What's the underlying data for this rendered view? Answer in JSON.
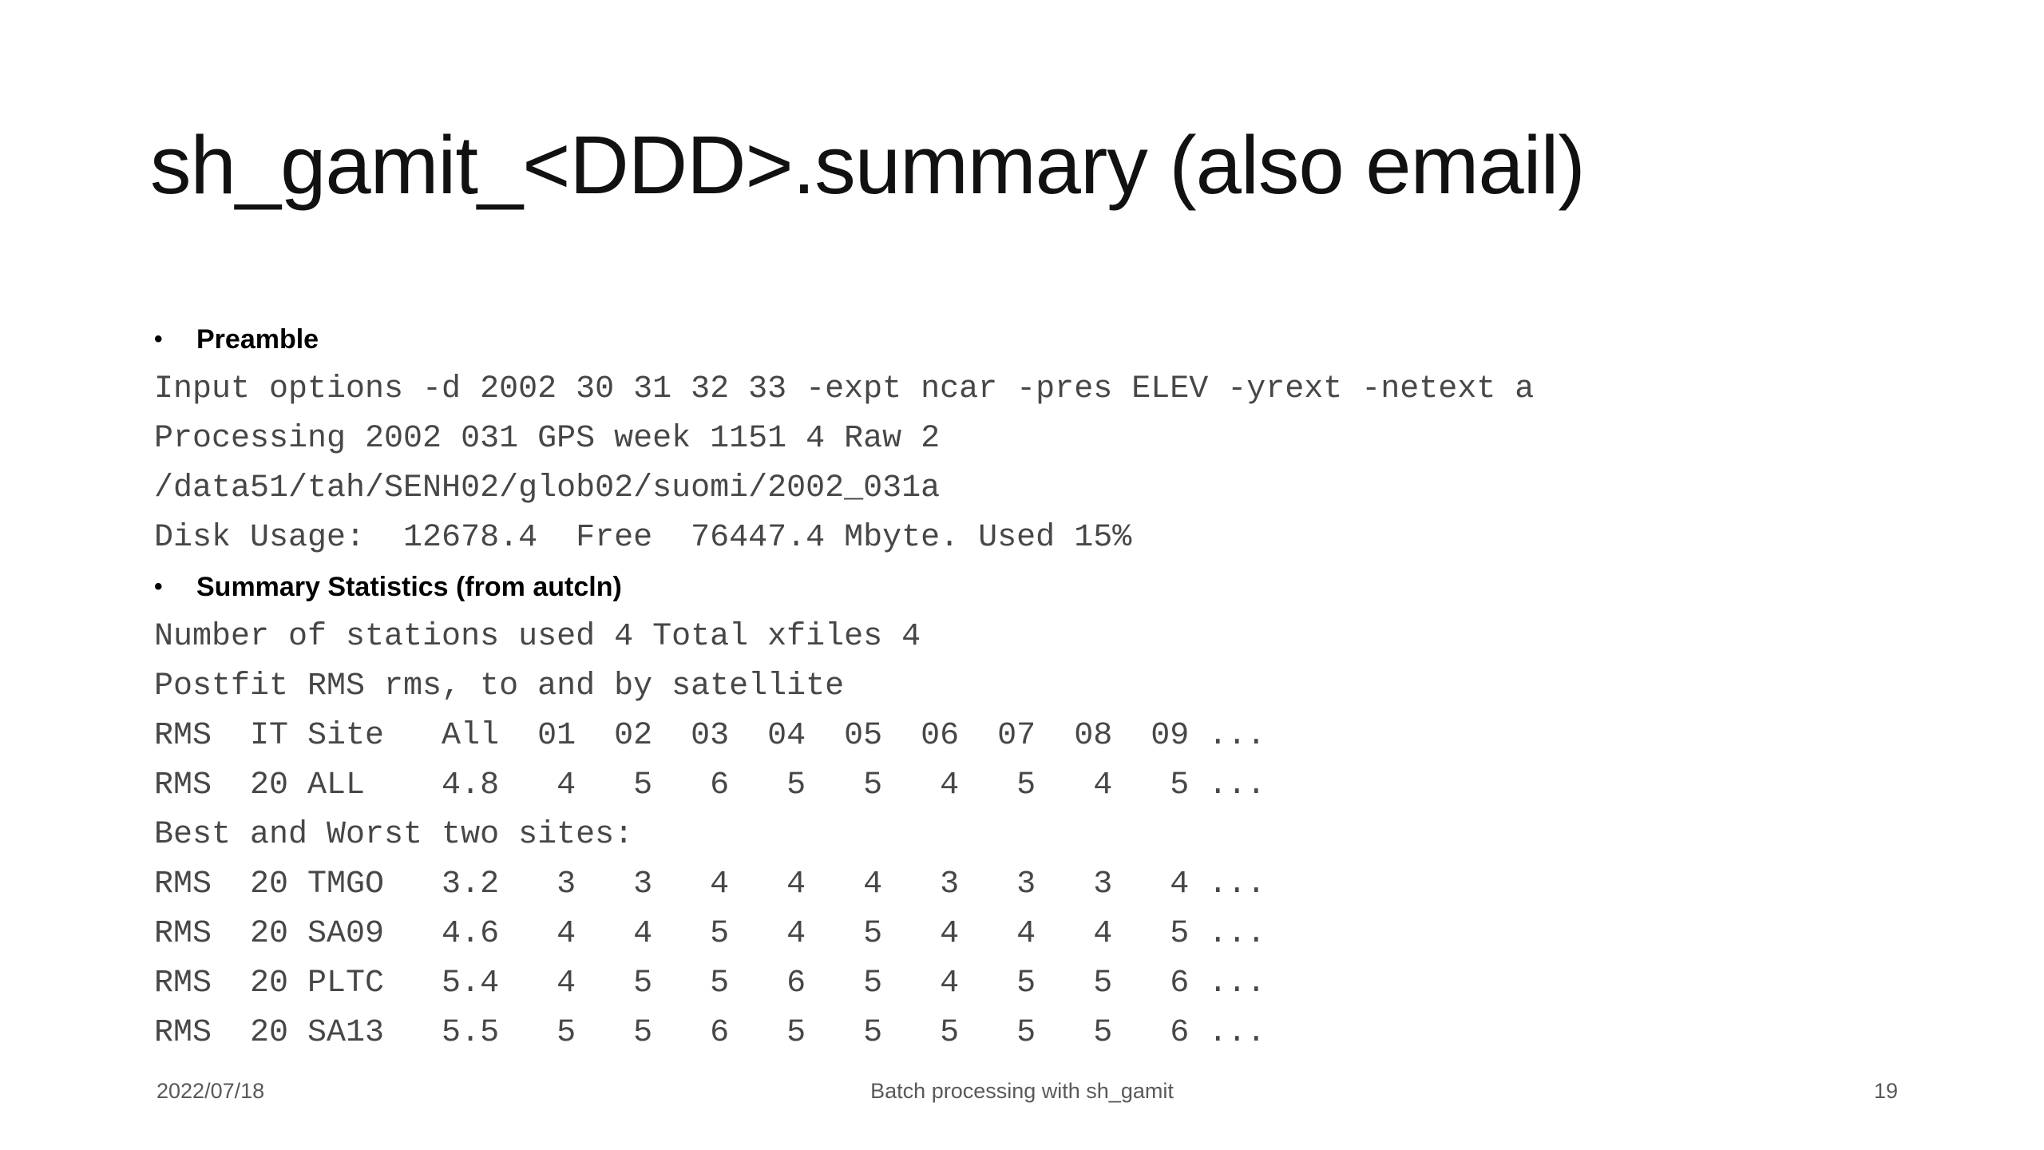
{
  "slide": {
    "title": "sh_gamit_<DDD>.summary (also email)",
    "bullet_char": "•"
  },
  "body": {
    "lines": [
      {
        "kind": "bullet",
        "text": "Preamble"
      },
      {
        "kind": "mono",
        "text": "Input options -d 2002 30 31 32 33 -expt ncar -pres ELEV -yrext -netext a"
      },
      {
        "kind": "mono",
        "text": "Processing 2002 031 GPS week 1151 4 Raw 2"
      },
      {
        "kind": "mono",
        "text": "/data51/tah/SENH02/glob02/suomi/2002_031a"
      },
      {
        "kind": "mono",
        "text": "Disk Usage:  12678.4  Free  76447.4 Mbyte. Used 15%"
      },
      {
        "kind": "bullet",
        "text": "Summary Statistics (from autcln)"
      },
      {
        "kind": "mono",
        "text": "Number of stations used 4 Total xfiles 4"
      },
      {
        "kind": "mono",
        "text": "Postfit RMS rms, to and by satellite"
      },
      {
        "kind": "mono",
        "text": "RMS  IT Site   All  01  02  03  04  05  06  07  08  09 ..."
      },
      {
        "kind": "mono",
        "text": "RMS  20 ALL    4.8   4   5   6   5   5   4   5   4   5 ..."
      },
      {
        "kind": "mono",
        "text": "Best and Worst two sites:"
      },
      {
        "kind": "mono",
        "text": "RMS  20 TMGO   3.2   3   3   4   4   4   3   3   3   4 ..."
      },
      {
        "kind": "mono",
        "text": "RMS  20 SA09   4.6   4   4   5   4   5   4   4   4   5 ..."
      },
      {
        "kind": "mono",
        "text": "RMS  20 PLTC   5.4   4   5   5   6   5   4   5   5   6 ..."
      },
      {
        "kind": "mono",
        "text": "RMS  20 SA13   5.5   5   5   6   5   5   5   5   5   6 ..."
      }
    ]
  },
  "rms_table": {
    "header": [
      "RMS",
      "IT",
      "Site",
      "All",
      "01",
      "02",
      "03",
      "04",
      "05",
      "06",
      "07",
      "08",
      "09"
    ],
    "rows": [
      [
        "RMS",
        "20",
        "ALL",
        "4.8",
        "4",
        "5",
        "6",
        "5",
        "5",
        "4",
        "5",
        "4",
        "5"
      ],
      [
        "RMS",
        "20",
        "TMGO",
        "3.2",
        "3",
        "3",
        "4",
        "4",
        "4",
        "3",
        "3",
        "3",
        "4"
      ],
      [
        "RMS",
        "20",
        "SA09",
        "4.6",
        "4",
        "4",
        "5",
        "4",
        "5",
        "4",
        "4",
        "4",
        "5"
      ],
      [
        "RMS",
        "20",
        "PLTC",
        "5.4",
        "4",
        "5",
        "5",
        "6",
        "5",
        "4",
        "5",
        "5",
        "6"
      ],
      [
        "RMS",
        "20",
        "SA13",
        "5.5",
        "5",
        "5",
        "6",
        "5",
        "5",
        "5",
        "5",
        "5",
        "6"
      ]
    ]
  },
  "footer": {
    "date": "2022/07/18",
    "center_text": "Batch processing with sh_gamit",
    "page_number": "19"
  },
  "colors": {
    "background": "#ffffff",
    "title_text": "#111111",
    "bullet_text": "#000000",
    "mono_text": "#474747",
    "footer_text": "#595959"
  }
}
